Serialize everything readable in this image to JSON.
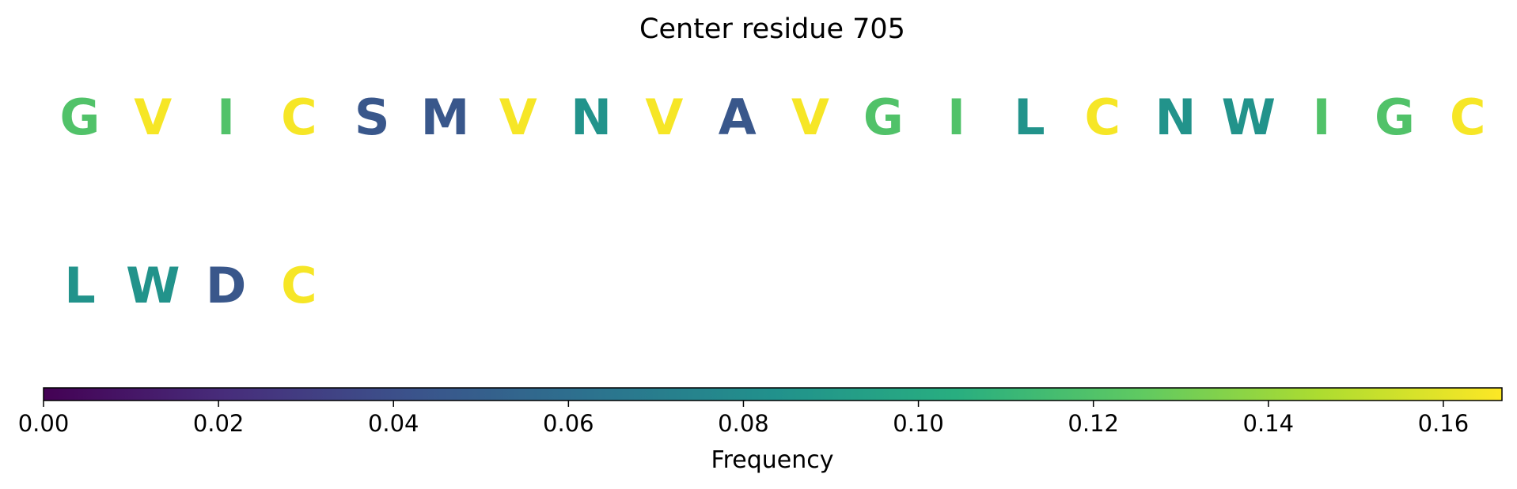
{
  "chart_data": {
    "type": "heatmap",
    "title": "Center residue 705",
    "residues": [
      {
        "letter": "G",
        "value": 0.12
      },
      {
        "letter": "V",
        "value": 0.165
      },
      {
        "letter": "I",
        "value": 0.12
      },
      {
        "letter": "C",
        "value": 0.165
      },
      {
        "letter": "S",
        "value": 0.045
      },
      {
        "letter": "M",
        "value": 0.045
      },
      {
        "letter": "V",
        "value": 0.165
      },
      {
        "letter": "N",
        "value": 0.085
      },
      {
        "letter": "V",
        "value": 0.165
      },
      {
        "letter": "A",
        "value": 0.045
      },
      {
        "letter": "V",
        "value": 0.165
      },
      {
        "letter": "G",
        "value": 0.12
      },
      {
        "letter": "I",
        "value": 0.12
      },
      {
        "letter": "L",
        "value": 0.085
      },
      {
        "letter": "C",
        "value": 0.165
      },
      {
        "letter": "N",
        "value": 0.085
      },
      {
        "letter": "W",
        "value": 0.085
      },
      {
        "letter": "I",
        "value": 0.12
      },
      {
        "letter": "G",
        "value": 0.12
      },
      {
        "letter": "C",
        "value": 0.165
      },
      {
        "letter": "L",
        "value": 0.085
      },
      {
        "letter": "W",
        "value": 0.085
      },
      {
        "letter": "D",
        "value": 0.045
      },
      {
        "letter": "C",
        "value": 0.165
      }
    ],
    "colorbar": {
      "label": "Frequency",
      "range": [
        0,
        0.1667
      ],
      "ticks": [
        "0.00",
        "0.02",
        "0.04",
        "0.06",
        "0.08",
        "0.10",
        "0.12",
        "0.14",
        "0.16"
      ],
      "colormap": "viridis"
    },
    "grid": false
  }
}
